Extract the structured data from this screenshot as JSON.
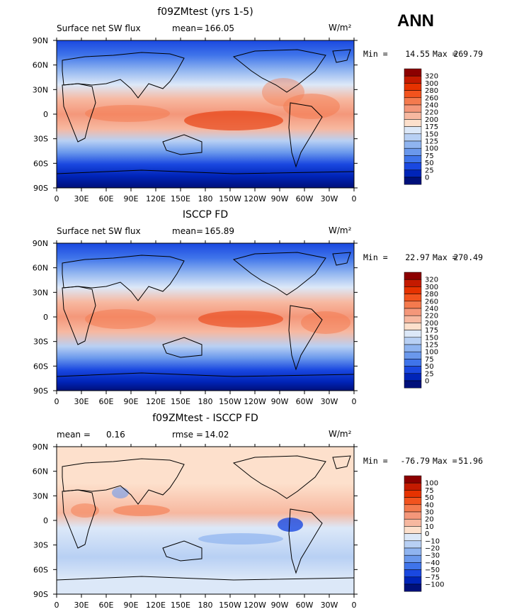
{
  "season": "ANN",
  "chart_data": [
    {
      "type": "heatmap",
      "title": "f09ZMtest (yrs 1-5)",
      "left_label": "Surface net SW flux",
      "stat_label": "mean=",
      "stat_value": "166.05",
      "units": "W/m²",
      "min_label": "Min =",
      "min_value": "14.55",
      "max_label": "Max =",
      "max_value": "269.79",
      "xticks": [
        "0",
        "30E",
        "60E",
        "90E",
        "120E",
        "150E",
        "180",
        "150W",
        "120W",
        "90W",
        "60W",
        "30W",
        "0"
      ],
      "yticks": [
        "90N",
        "60N",
        "30N",
        "0",
        "30S",
        "60S",
        "90S"
      ],
      "colorbar": {
        "labels": [
          "320",
          "300",
          "280",
          "260",
          "240",
          "220",
          "200",
          "175",
          "150",
          "125",
          "100",
          "75",
          "50",
          "25",
          "0"
        ],
        "colors": [
          "#8c0000",
          "#c41a00",
          "#e63200",
          "#f2531e",
          "#f47a4e",
          "#f4977a",
          "#f7b8a0",
          "#fde0cc",
          "#dce8f8",
          "#b8d0f4",
          "#8fb4f0",
          "#6a98ec",
          "#3f74ea",
          "#1a48e0",
          "#0024b8",
          "#00107a"
        ]
      }
    },
    {
      "type": "heatmap",
      "title": "ISCCP FD",
      "left_label": "Surface net SW flux",
      "stat_label": "mean=",
      "stat_value": "165.89",
      "units": "W/m²",
      "min_label": "Min =",
      "min_value": "22.97",
      "max_label": "Max =",
      "max_value": "270.49",
      "xticks": [
        "0",
        "30E",
        "60E",
        "90E",
        "120E",
        "150E",
        "180",
        "150W",
        "120W",
        "90W",
        "60W",
        "30W",
        "0"
      ],
      "yticks": [
        "90N",
        "60N",
        "30N",
        "0",
        "30S",
        "60S",
        "90S"
      ],
      "colorbar": {
        "labels": [
          "320",
          "300",
          "280",
          "260",
          "240",
          "220",
          "200",
          "175",
          "150",
          "125",
          "100",
          "75",
          "50",
          "25",
          "0"
        ],
        "colors": [
          "#8c0000",
          "#c41a00",
          "#e63200",
          "#f2531e",
          "#f47a4e",
          "#f4977a",
          "#f7b8a0",
          "#fde0cc",
          "#dce8f8",
          "#b8d0f4",
          "#8fb4f0",
          "#6a98ec",
          "#3f74ea",
          "#1a48e0",
          "#0024b8",
          "#00107a"
        ]
      }
    },
    {
      "type": "heatmap",
      "title": "f09ZMtest - ISCCP FD",
      "left_label": "mean =",
      "left_value": "0.16",
      "stat_label": "rmse =",
      "stat_value": "14.02",
      "units": "W/m²",
      "min_label": "Min =",
      "min_value": "-76.79",
      "max_label": "Max =",
      "max_value": "51.96",
      "xticks": [
        "0",
        "30E",
        "60E",
        "90E",
        "120E",
        "150E",
        "180",
        "150W",
        "120W",
        "90W",
        "60W",
        "30W",
        "0"
      ],
      "yticks": [
        "90N",
        "60N",
        "30N",
        "0",
        "30S",
        "60S",
        "90S"
      ],
      "colorbar": {
        "labels": [
          "100",
          "75",
          "50",
          "40",
          "30",
          "20",
          "10",
          "0",
          "−10",
          "−20",
          "−30",
          "−40",
          "−50",
          "−75",
          "−100"
        ],
        "colors": [
          "#8c0000",
          "#c41a00",
          "#e63200",
          "#f2531e",
          "#f47a4e",
          "#f4977a",
          "#f7b8a0",
          "#fde0cc",
          "#dce8f8",
          "#b8d0f4",
          "#8fb4f0",
          "#6a98ec",
          "#3f74ea",
          "#1a48e0",
          "#0024b8",
          "#00107a"
        ]
      }
    }
  ]
}
